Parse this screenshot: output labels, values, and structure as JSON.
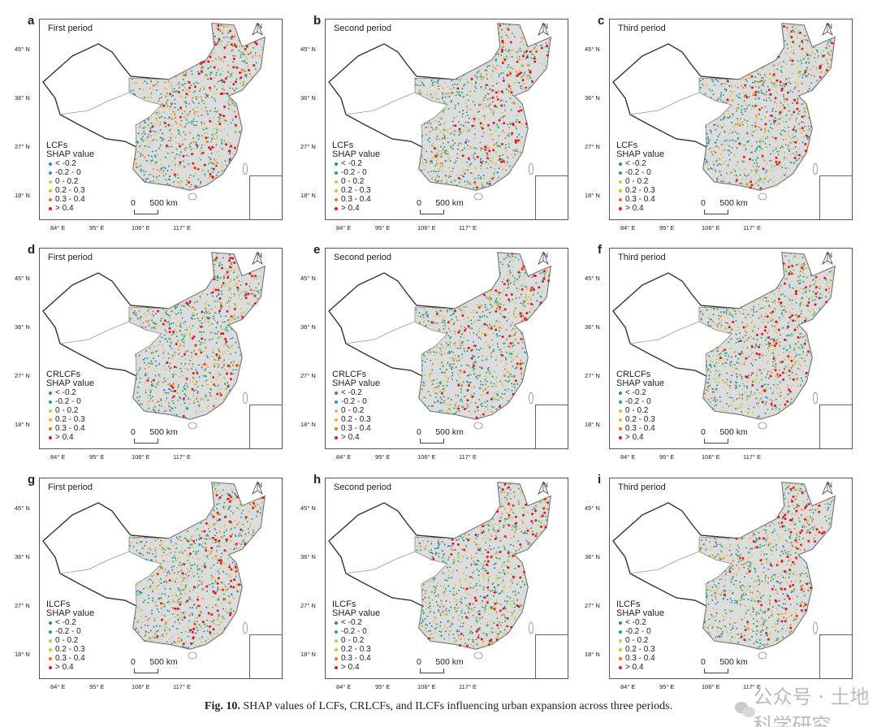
{
  "legend_title": "SHAP value",
  "legend_items": [
    {
      "label": "< -0.2",
      "color": "#2c7fb8"
    },
    {
      "label": "-0.2 - 0",
      "color": "#2a9d8f"
    },
    {
      "label": "0 - 0.2",
      "color": "#c5c75a"
    },
    {
      "label": "0.2 - 0.3",
      "color": "#f2b51d"
    },
    {
      "label": "0.3 - 0.4",
      "color": "#f0741e"
    },
    {
      "label": "> 0.4",
      "color": "#e31a1c"
    }
  ],
  "north_label": "N",
  "scale_label": "0      500 km",
  "lat_ticks": [
    "45° N",
    "36° N",
    "27° N",
    "18° N"
  ],
  "lon_ticks": [
    "84° E",
    "95° E",
    "106° E",
    "117° E"
  ],
  "panels": [
    {
      "label": "a",
      "title": "First period",
      "variable": "LCFs"
    },
    {
      "label": "b",
      "title": "Second period",
      "variable": "LCFs"
    },
    {
      "label": "c",
      "title": "Third period",
      "variable": "LCFs"
    },
    {
      "label": "d",
      "title": "First period",
      "variable": "CRLCFs"
    },
    {
      "label": "e",
      "title": "Second period",
      "variable": "CRLCFs"
    },
    {
      "label": "f",
      "title": "Third period",
      "variable": "CRLCFs"
    },
    {
      "label": "g",
      "title": "First period",
      "variable": "ILCFs"
    },
    {
      "label": "h",
      "title": "Second period",
      "variable": "ILCFs"
    },
    {
      "label": "i",
      "title": "Third period",
      "variable": "ILCFs"
    }
  ],
  "caption": {
    "label": "Fig. 10.",
    "text": " SHAP values of LCFs, CRLCFs, and ILCFs influencing urban expansion across three periods."
  },
  "watermark": "公众号 · 土地科学研究"
}
